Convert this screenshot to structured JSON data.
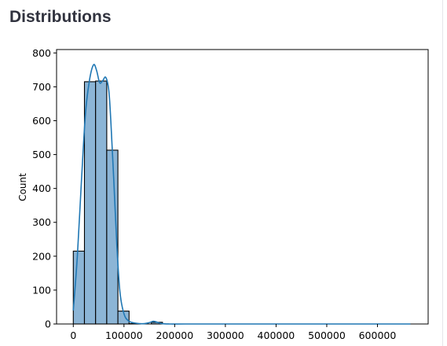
{
  "page": {
    "section_title": "Distributions"
  },
  "chart_data": {
    "type": "bar",
    "subtype": "histogram",
    "title": "",
    "xlabel": "",
    "ylabel": "Count",
    "xlim": [
      -33000,
      700000
    ],
    "ylim": [
      0,
      810
    ],
    "xticks": [
      0,
      100000,
      200000,
      300000,
      400000,
      500000,
      600000
    ],
    "yticks": [
      0,
      100,
      200,
      300,
      400,
      500,
      600,
      700,
      800
    ],
    "grid": false,
    "legend": "none",
    "bins": [
      {
        "start": 0,
        "end": 22000,
        "count": 215
      },
      {
        "start": 22000,
        "end": 44000,
        "count": 715
      },
      {
        "start": 44000,
        "end": 66000,
        "count": 717
      },
      {
        "start": 66000,
        "end": 88000,
        "count": 513
      },
      {
        "start": 88000,
        "end": 110000,
        "count": 38
      },
      {
        "start": 110000,
        "end": 132000,
        "count": 1
      },
      {
        "start": 132000,
        "end": 154000,
        "count": 0
      },
      {
        "start": 154000,
        "end": 176000,
        "count": 5
      }
    ],
    "kde": {
      "x": [
        0,
        8000,
        16000,
        24000,
        32000,
        40000,
        46000,
        52000,
        58000,
        64000,
        70000,
        74000,
        80000,
        86000,
        92000,
        100000,
        110000,
        125000,
        140000,
        150000,
        158000,
        166000,
        175000,
        190000,
        220000,
        300000,
        400000,
        500000,
        600000,
        665000
      ],
      "y": [
        40,
        200,
        420,
        620,
        720,
        765,
        748,
        712,
        718,
        728,
        690,
        600,
        420,
        230,
        95,
        30,
        8,
        2,
        1,
        4,
        8,
        5,
        1,
        0,
        0,
        0,
        0,
        0,
        0,
        0
      ]
    },
    "colors": {
      "bar_fill": "#8cb5d6",
      "bar_edge": "#000000",
      "kde_line": "#1f77b4"
    }
  }
}
